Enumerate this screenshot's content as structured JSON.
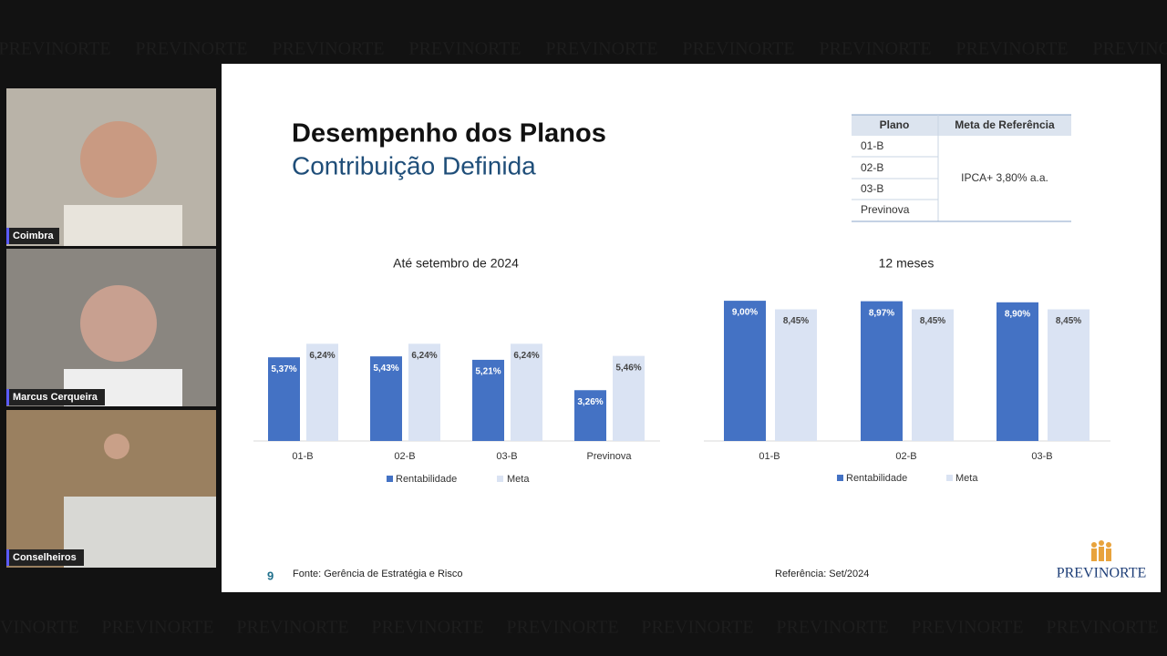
{
  "watermark": "PREVINORTE",
  "participants": [
    "Coimbra",
    "Marcus Cerqueira",
    "Conselheiros"
  ],
  "slide": {
    "title": "Desempenho dos Planos",
    "subtitle": "Contribuição Definida",
    "table": {
      "header": [
        "Plano",
        "Meta de Referência"
      ],
      "plans": [
        "01-B",
        "02-B",
        "03-B",
        "Previnova"
      ],
      "meta": "IPCA+ 3,80% a.a."
    },
    "page_number": "9",
    "source": "Fonte: Gerência de Estratégia e Risco",
    "reference": "Referência: Set/2024",
    "logo": "PREVINORTE"
  },
  "chart_data": [
    {
      "type": "bar",
      "title": "Até setembro de 2024",
      "categories": [
        "01-B",
        "02-B",
        "03-B",
        "Previnova"
      ],
      "series": [
        {
          "name": "Rentabilidade",
          "color": "#4472c4",
          "values": [
            5.37,
            5.43,
            5.21,
            3.26
          ],
          "value_labels": [
            "5,37%",
            "5,43%",
            "5,21%",
            "3,26%"
          ]
        },
        {
          "name": "Meta",
          "color": "#dae3f3",
          "values": [
            6.24,
            6.24,
            6.24,
            5.46
          ],
          "value_labels": [
            "6,24%",
            "6,24%",
            "6,24%",
            "5,46%"
          ]
        }
      ]
    },
    {
      "type": "bar",
      "title": "12 meses",
      "categories": [
        "01-B",
        "02-B",
        "03-B"
      ],
      "series": [
        {
          "name": "Rentabilidade",
          "color": "#4472c4",
          "values": [
            9.0,
            8.97,
            8.9
          ],
          "value_labels": [
            "9,00%",
            "8,97%",
            "8,90%"
          ]
        },
        {
          "name": "Meta",
          "color": "#dae3f3",
          "values": [
            8.45,
            8.45,
            8.45
          ],
          "value_labels": [
            "8,45%",
            "8,45%",
            "8,45%"
          ]
        }
      ]
    }
  ]
}
